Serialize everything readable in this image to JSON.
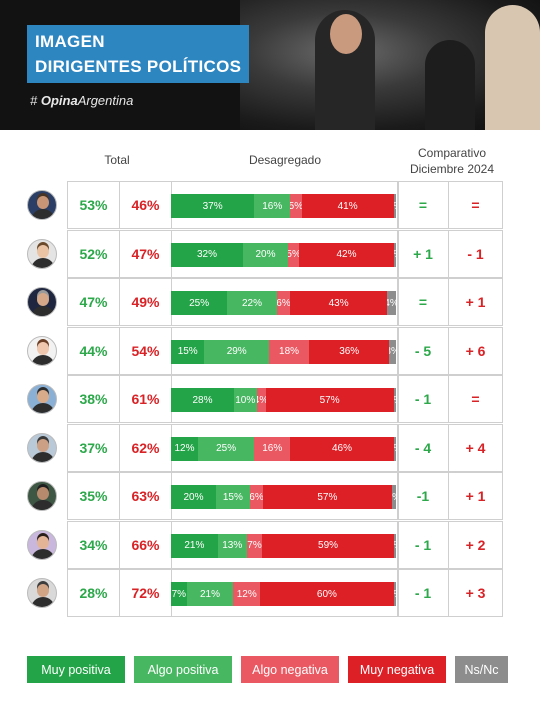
{
  "header": {
    "title_line1": "IMAGEN",
    "title_line2": "DIRIGENTES POLÍTICOS",
    "brand_hash": "#",
    "brand_bold": "Opina",
    "brand_rest": "Argentina"
  },
  "columns": {
    "total": "Total",
    "breakdown": "Desagregado",
    "compare_line1": "Comparativo",
    "compare_line2": "Diciembre 2024"
  },
  "colors": {
    "muy_positiva": "#24a448",
    "algo_positiva": "#48b762",
    "algo_negativa": "#ea5862",
    "muy_negativa": "#dd1f26",
    "ns_nc": "#8d8d8d"
  },
  "legend": [
    "Muy positiva",
    "Algo positiva",
    "Algo negativa",
    "Muy negativa",
    "Ns/Nc"
  ],
  "chart_data": {
    "type": "bar",
    "stacked": true,
    "orientation": "horizontal",
    "series_names": [
      "Muy positiva",
      "Algo positiva",
      "Algo negativa",
      "Muy negativa",
      "Ns/Nc"
    ],
    "rows": [
      {
        "positive_total": "53%",
        "negative_total": "46%",
        "values": [
          37,
          16,
          5,
          41,
          1
        ],
        "labels": [
          "37%",
          "16%",
          "5%",
          "41%",
          "1%"
        ],
        "change_positive": "=",
        "change_negative": "="
      },
      {
        "positive_total": "52%",
        "negative_total": "47%",
        "values": [
          32,
          20,
          5,
          42,
          1
        ],
        "labels": [
          "32%",
          "20%",
          "5%",
          "42%",
          "1%"
        ],
        "change_positive": "+ 1",
        "change_negative": "- 1"
      },
      {
        "positive_total": "47%",
        "negative_total": "49%",
        "values": [
          25,
          22,
          6,
          43,
          4
        ],
        "labels": [
          "25%",
          "22%",
          "6%",
          "43%",
          "4%"
        ],
        "change_positive": "=",
        "change_negative": "+ 1"
      },
      {
        "positive_total": "44%",
        "negative_total": "54%",
        "values": [
          15,
          29,
          18,
          36,
          3
        ],
        "labels": [
          "15%",
          "29%",
          "18%",
          "36%",
          "3%"
        ],
        "change_positive": "- 5",
        "change_negative": "+ 6"
      },
      {
        "positive_total": "38%",
        "negative_total": "61%",
        "values": [
          28,
          10,
          4,
          57,
          1
        ],
        "labels": [
          "28%",
          "10%",
          "4%",
          "57%",
          "1%"
        ],
        "change_positive": "- 1",
        "change_negative": "="
      },
      {
        "positive_total": "37%",
        "negative_total": "62%",
        "values": [
          12,
          25,
          16,
          46,
          1
        ],
        "labels": [
          "12%",
          "25%",
          "16%",
          "46%",
          "1%"
        ],
        "change_positive": "- 4",
        "change_negative": "+ 4"
      },
      {
        "positive_total": "35%",
        "negative_total": "63%",
        "values": [
          20,
          15,
          6,
          57,
          2
        ],
        "labels": [
          "20%",
          "15%",
          "6%",
          "57%",
          "2%"
        ],
        "change_positive": "-1",
        "change_negative": "+ 1"
      },
      {
        "positive_total": "34%",
        "negative_total": "66%",
        "values": [
          21,
          13,
          7,
          59,
          1
        ],
        "labels": [
          "21%",
          "13%",
          "7%",
          "59%",
          "1%"
        ],
        "change_positive": "- 1",
        "change_negative": "+ 2"
      },
      {
        "positive_total": "28%",
        "negative_total": "72%",
        "values": [
          7,
          21,
          12,
          60,
          1
        ],
        "labels": [
          "7%",
          "21%",
          "12%",
          "60%",
          "1%"
        ],
        "change_positive": "- 1",
        "change_negative": "+ 3"
      }
    ]
  },
  "avatars": [
    {
      "face": "#c89677",
      "hair": "#4a3424",
      "bg": "#2b3f66"
    },
    {
      "face": "#eac3a5",
      "hair": "#6a4a2a",
      "bg": "#e4e4e4"
    },
    {
      "face": "#d4a888",
      "hair": "#9a9a9a",
      "bg": "#1f2740"
    },
    {
      "face": "#efc7ae",
      "hair": "#6a3f25",
      "bg": "#f2f2f2"
    },
    {
      "face": "#d8ab8b",
      "hair": "#2d2d2d",
      "bg": "#8ab0d6"
    },
    {
      "face": "#cca084",
      "hair": "#3a3a3a",
      "bg": "#b9c9d8"
    },
    {
      "face": "#b78a6d",
      "hair": "#1f1f1f",
      "bg": "#3e5744"
    },
    {
      "face": "#e3b596",
      "hair": "#2a1f18",
      "bg": "#c9b7dd"
    },
    {
      "face": "#d1a486",
      "hair": "#3d3d3d",
      "bg": "#d9d9d9"
    }
  ]
}
